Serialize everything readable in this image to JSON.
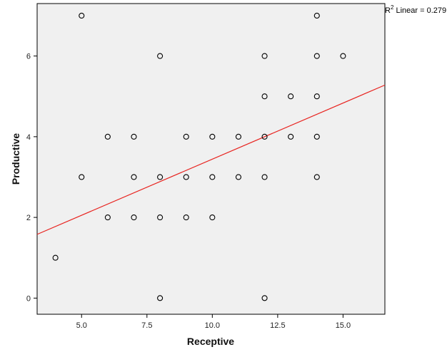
{
  "chart_data": {
    "type": "scatter",
    "xlabel": "Receptive",
    "ylabel": "Productive",
    "xlim": [
      3.3,
      16.6
    ],
    "ylim": [
      -0.4,
      7.3
    ],
    "xticks": [
      5.0,
      7.5,
      10.0,
      12.5,
      15.0
    ],
    "xtick_labels": [
      "5.0",
      "7.5",
      "10.0",
      "12.5",
      "15.0"
    ],
    "yticks": [
      0,
      2,
      4,
      6
    ],
    "ytick_labels": [
      "0",
      "2",
      "4",
      "6"
    ],
    "points": [
      {
        "x": 4,
        "y": 1
      },
      {
        "x": 5,
        "y": 7
      },
      {
        "x": 5,
        "y": 3
      },
      {
        "x": 6,
        "y": 4
      },
      {
        "x": 6,
        "y": 2
      },
      {
        "x": 7,
        "y": 4
      },
      {
        "x": 7,
        "y": 3
      },
      {
        "x": 7,
        "y": 2
      },
      {
        "x": 8,
        "y": 6
      },
      {
        "x": 8,
        "y": 3
      },
      {
        "x": 8,
        "y": 2
      },
      {
        "x": 8,
        "y": 0
      },
      {
        "x": 9,
        "y": 4
      },
      {
        "x": 9,
        "y": 3
      },
      {
        "x": 9,
        "y": 2
      },
      {
        "x": 10,
        "y": 4
      },
      {
        "x": 10,
        "y": 3
      },
      {
        "x": 10,
        "y": 2
      },
      {
        "x": 11,
        "y": 4
      },
      {
        "x": 11,
        "y": 3
      },
      {
        "x": 12,
        "y": 6
      },
      {
        "x": 12,
        "y": 5
      },
      {
        "x": 12,
        "y": 4
      },
      {
        "x": 12,
        "y": 3
      },
      {
        "x": 12,
        "y": 0
      },
      {
        "x": 13,
        "y": 5
      },
      {
        "x": 13,
        "y": 4
      },
      {
        "x": 14,
        "y": 7
      },
      {
        "x": 14,
        "y": 6
      },
      {
        "x": 14,
        "y": 5
      },
      {
        "x": 14,
        "y": 4
      },
      {
        "x": 14,
        "y": 3
      },
      {
        "x": 15,
        "y": 6
      }
    ],
    "fit_line": {
      "type": "linear",
      "from": {
        "x": 3.3,
        "y": 1.58
      },
      "to": {
        "x": 16.6,
        "y": 5.28
      },
      "color": "#e8231f"
    },
    "r2_annotation": {
      "prefix": "R",
      "superscript": "2",
      "text": " Linear = 0.279"
    },
    "grid": false,
    "legend": "none",
    "colors": {
      "plot_background": "#f0f0f0",
      "frame": "#000000",
      "marker_stroke": "#000000",
      "fit_line": "#e8231f"
    }
  }
}
